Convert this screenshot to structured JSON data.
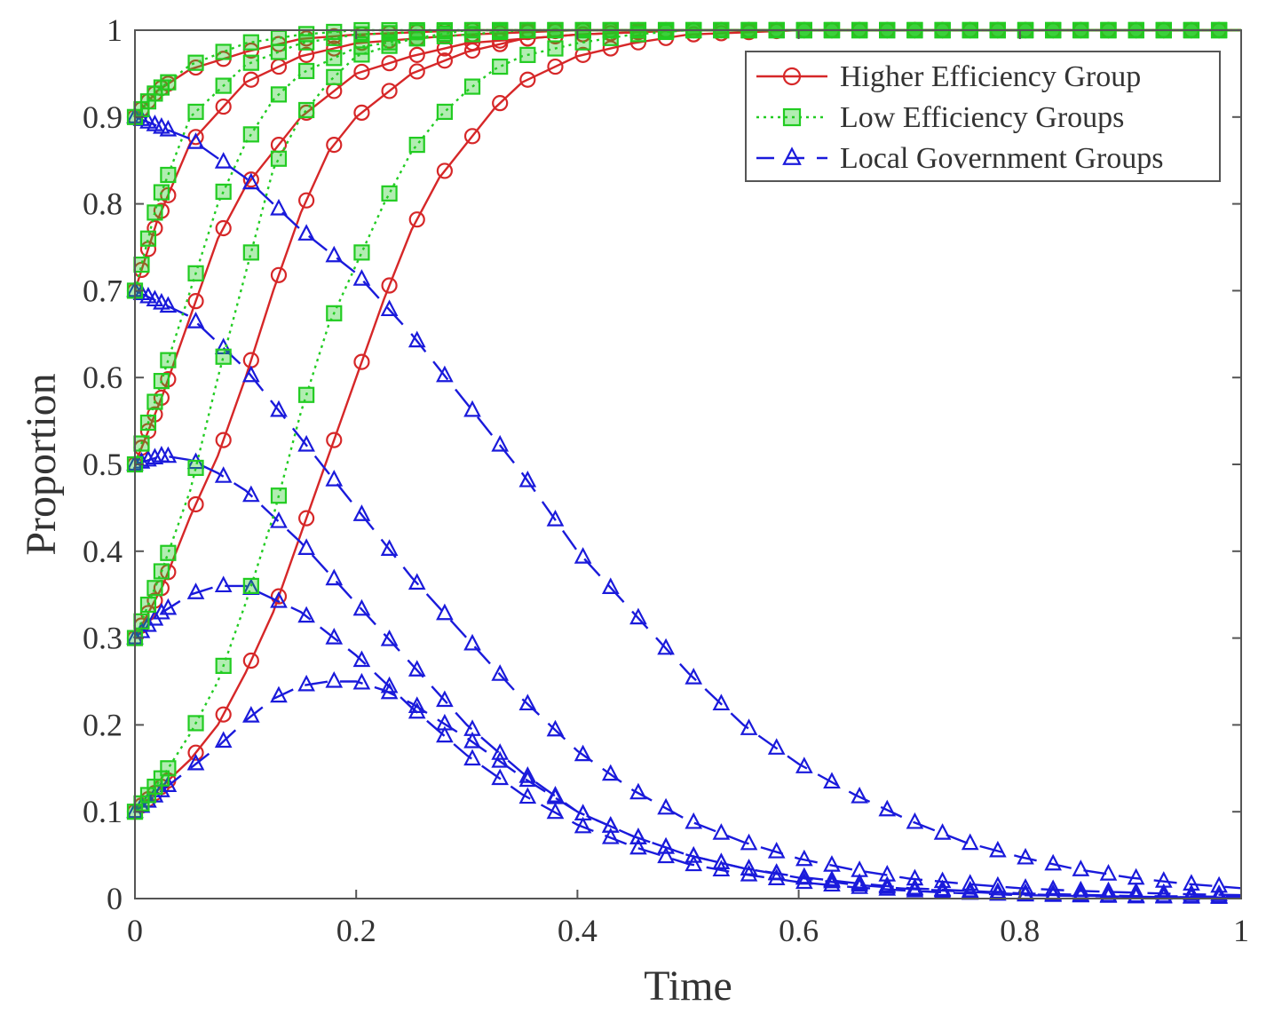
{
  "chart_data": {
    "type": "line",
    "title": "",
    "xlabel": "Time",
    "ylabel": "Proportion",
    "xlim": [
      0,
      1
    ],
    "ylim": [
      0,
      1
    ],
    "xticks": [
      0,
      0.2,
      0.4,
      0.6,
      0.8,
      1
    ],
    "yticks": [
      0,
      0.1,
      0.2,
      0.3,
      0.4,
      0.5,
      0.6,
      0.7,
      0.8,
      0.9,
      1
    ],
    "xtick_labels": [
      "0",
      "0.2",
      "0.4",
      "0.6",
      "0.8",
      "1"
    ],
    "ytick_labels": [
      "0",
      "0.1",
      "0.2",
      "0.3",
      "0.4",
      "0.5",
      "0.6",
      "0.7",
      "0.8",
      "0.9",
      "1"
    ],
    "grid": false,
    "legend_position": "top-right",
    "legend": [
      {
        "label": "Higher Efficiency Group",
        "color": "#d62728",
        "marker": "circle",
        "line": "solid"
      },
      {
        "label": "Low Efficiency Groups",
        "color": "#22cc22",
        "marker": "square",
        "line": "dotted"
      },
      {
        "label": "Local Government Groups",
        "color": "#1a1adb",
        "marker": "triangle",
        "line": "dashed"
      }
    ],
    "series": [
      {
        "group": "Higher Efficiency Group",
        "initial": 0.9,
        "x": [
          0,
          0.02,
          0.05,
          0.1,
          0.15,
          0.2,
          0.3,
          0.4,
          0.5,
          0.7,
          1.0
        ],
        "y": [
          0.9,
          0.93,
          0.955,
          0.975,
          0.99,
          0.995,
          1,
          1,
          1,
          1,
          1
        ]
      },
      {
        "group": "Higher Efficiency Group",
        "initial": 0.7,
        "x": [
          0,
          0.02,
          0.05,
          0.1,
          0.15,
          0.2,
          0.3,
          0.4,
          0.5,
          0.7,
          1.0
        ],
        "y": [
          0.7,
          0.78,
          0.87,
          0.94,
          0.97,
          0.985,
          0.995,
          1,
          1,
          1,
          1
        ]
      },
      {
        "group": "Higher Efficiency Group",
        "initial": 0.5,
        "x": [
          0,
          0.025,
          0.05,
          0.075,
          0.1,
          0.15,
          0.2,
          0.25,
          0.3,
          0.4,
          0.5,
          0.7,
          1.0
        ],
        "y": [
          0.5,
          0.58,
          0.67,
          0.76,
          0.82,
          0.9,
          0.95,
          0.97,
          0.985,
          0.995,
          1,
          1,
          1
        ]
      },
      {
        "group": "Higher Efficiency Group",
        "initial": 0.3,
        "x": [
          0,
          0.025,
          0.05,
          0.075,
          0.1,
          0.125,
          0.15,
          0.175,
          0.2,
          0.25,
          0.3,
          0.35,
          0.4,
          0.5,
          0.7,
          1.0
        ],
        "y": [
          0.3,
          0.36,
          0.44,
          0.51,
          0.6,
          0.7,
          0.79,
          0.86,
          0.9,
          0.95,
          0.975,
          0.99,
          0.995,
          1,
          1,
          1
        ]
      },
      {
        "group": "Higher Efficiency Group",
        "initial": 0.1,
        "x": [
          0,
          0.025,
          0.05,
          0.075,
          0.1,
          0.125,
          0.15,
          0.175,
          0.2,
          0.225,
          0.25,
          0.275,
          0.3,
          0.325,
          0.35,
          0.4,
          0.45,
          0.5,
          0.6,
          0.8,
          1.0
        ],
        "y": [
          0.1,
          0.13,
          0.16,
          0.2,
          0.26,
          0.33,
          0.42,
          0.51,
          0.6,
          0.69,
          0.77,
          0.83,
          0.87,
          0.91,
          0.94,
          0.97,
          0.985,
          0.995,
          1,
          1,
          1
        ]
      },
      {
        "group": "Low Efficiency Groups",
        "initial": 0.9,
        "x": [
          0,
          0.02,
          0.05,
          0.1,
          0.15,
          0.2,
          0.3,
          0.4,
          0.5,
          0.7,
          1.0
        ],
        "y": [
          0.9,
          0.93,
          0.96,
          0.985,
          0.995,
          1,
          1,
          1,
          1,
          1,
          1
        ]
      },
      {
        "group": "Low Efficiency Groups",
        "initial": 0.7,
        "x": [
          0,
          0.02,
          0.05,
          0.1,
          0.15,
          0.2,
          0.3,
          0.4,
          0.5,
          0.7,
          1.0
        ],
        "y": [
          0.7,
          0.8,
          0.9,
          0.96,
          0.985,
          0.995,
          1,
          1,
          1,
          1,
          1
        ]
      },
      {
        "group": "Low Efficiency Groups",
        "initial": 0.5,
        "x": [
          0,
          0.025,
          0.05,
          0.075,
          0.1,
          0.125,
          0.15,
          0.2,
          0.25,
          0.3,
          0.4,
          0.5,
          0.7,
          1.0
        ],
        "y": [
          0.5,
          0.6,
          0.7,
          0.8,
          0.87,
          0.92,
          0.95,
          0.98,
          0.99,
          1,
          1,
          1,
          1,
          1
        ]
      },
      {
        "group": "Low Efficiency Groups",
        "initial": 0.3,
        "x": [
          0,
          0.025,
          0.05,
          0.075,
          0.1,
          0.125,
          0.15,
          0.175,
          0.2,
          0.25,
          0.3,
          0.35,
          0.4,
          0.5,
          0.7,
          1.0
        ],
        "y": [
          0.3,
          0.38,
          0.47,
          0.6,
          0.72,
          0.84,
          0.9,
          0.94,
          0.97,
          0.99,
          0.995,
          1,
          1,
          1,
          1,
          1
        ]
      },
      {
        "group": "Low Efficiency Groups",
        "initial": 0.1,
        "x": [
          0,
          0.025,
          0.05,
          0.075,
          0.1,
          0.125,
          0.15,
          0.175,
          0.2,
          0.225,
          0.25,
          0.275,
          0.3,
          0.325,
          0.35,
          0.4,
          0.45,
          0.5,
          0.6,
          0.8,
          1.0
        ],
        "y": [
          0.1,
          0.14,
          0.19,
          0.25,
          0.34,
          0.44,
          0.56,
          0.66,
          0.73,
          0.8,
          0.86,
          0.9,
          0.93,
          0.955,
          0.97,
          0.985,
          0.995,
          1,
          1,
          1,
          1
        ]
      },
      {
        "group": "Local Government Groups",
        "initial": 0.9,
        "x": [
          0,
          0.05,
          0.1,
          0.15,
          0.2,
          0.25,
          0.3,
          0.35,
          0.4,
          0.45,
          0.5,
          0.55,
          0.6,
          0.65,
          0.7,
          0.75,
          0.8,
          0.85,
          0.9,
          0.95,
          1.0
        ],
        "y": [
          0.9,
          0.875,
          0.83,
          0.77,
          0.72,
          0.65,
          0.57,
          0.49,
          0.4,
          0.33,
          0.26,
          0.2,
          0.155,
          0.12,
          0.09,
          0.065,
          0.048,
          0.034,
          0.024,
          0.017,
          0.012
        ]
      },
      {
        "group": "Local Government Groups",
        "initial": 0.7,
        "x": [
          0,
          0.05,
          0.1,
          0.15,
          0.2,
          0.25,
          0.3,
          0.35,
          0.4,
          0.45,
          0.5,
          0.55,
          0.6,
          0.65,
          0.7,
          0.75,
          0.8,
          0.85,
          0.9,
          0.95,
          1.0
        ],
        "y": [
          0.7,
          0.67,
          0.61,
          0.53,
          0.45,
          0.37,
          0.3,
          0.23,
          0.17,
          0.125,
          0.09,
          0.065,
          0.046,
          0.033,
          0.023,
          0.017,
          0.012,
          0.009,
          0.007,
          0.005,
          0.004
        ]
      },
      {
        "group": "Local Government Groups",
        "initial": 0.5,
        "x": [
          0,
          0.025,
          0.05,
          0.075,
          0.1,
          0.15,
          0.2,
          0.25,
          0.3,
          0.35,
          0.4,
          0.45,
          0.5,
          0.55,
          0.6,
          0.65,
          0.7,
          0.75,
          0.8,
          0.9,
          1.0
        ],
        "y": [
          0.5,
          0.51,
          0.505,
          0.49,
          0.47,
          0.41,
          0.34,
          0.27,
          0.2,
          0.145,
          0.1,
          0.072,
          0.05,
          0.035,
          0.025,
          0.018,
          0.012,
          0.009,
          0.006,
          0.003,
          0.002
        ]
      },
      {
        "group": "Local Government Groups",
        "initial": 0.3,
        "x": [
          0,
          0.025,
          0.05,
          0.075,
          0.1,
          0.15,
          0.2,
          0.25,
          0.3,
          0.35,
          0.4,
          0.45,
          0.5,
          0.55,
          0.6,
          0.65,
          0.7,
          0.75,
          0.8,
          0.9,
          1.0
        ],
        "y": [
          0.3,
          0.33,
          0.35,
          0.36,
          0.36,
          0.33,
          0.28,
          0.22,
          0.165,
          0.12,
          0.085,
          0.06,
          0.04,
          0.028,
          0.019,
          0.013,
          0.009,
          0.006,
          0.004,
          0.002,
          0.001
        ]
      },
      {
        "group": "Local Government Groups",
        "initial": 0.1,
        "x": [
          0,
          0.025,
          0.05,
          0.075,
          0.1,
          0.125,
          0.15,
          0.175,
          0.2,
          0.225,
          0.25,
          0.3,
          0.35,
          0.4,
          0.45,
          0.5,
          0.55,
          0.6,
          0.65,
          0.7,
          0.8,
          0.9,
          1.0
        ],
        "y": [
          0.1,
          0.125,
          0.15,
          0.175,
          0.205,
          0.23,
          0.245,
          0.25,
          0.25,
          0.24,
          0.225,
          0.185,
          0.14,
          0.1,
          0.072,
          0.05,
          0.035,
          0.024,
          0.016,
          0.011,
          0.005,
          0.002,
          0.001
        ]
      }
    ]
  }
}
